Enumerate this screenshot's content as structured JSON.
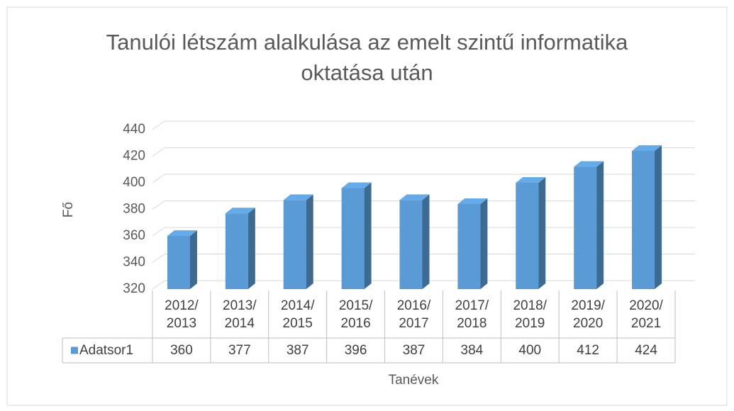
{
  "chart_data": {
    "type": "bar3d",
    "title": "Tanulói létszám alalkulása az emelt szintű informatika\noktatása után",
    "y_label": "Fő",
    "x_label": "Tanévek",
    "categories": [
      "2012/\n2013",
      "2013/\n2014",
      "2014/\n2015",
      "2015/\n2016",
      "2016/\n2017",
      "2017/\n2018",
      "2018/\n2019",
      "2019/\n2020",
      "2020/\n2021"
    ],
    "series": [
      {
        "name": "Adatsor1",
        "color": "#5b9bd5",
        "values": [
          360,
          377,
          387,
          396,
          387,
          384,
          400,
          412,
          424
        ]
      }
    ],
    "ylim": [
      320,
      440
    ],
    "yticks": [
      320,
      340,
      360,
      380,
      400,
      420,
      440
    ],
    "grid": true
  }
}
